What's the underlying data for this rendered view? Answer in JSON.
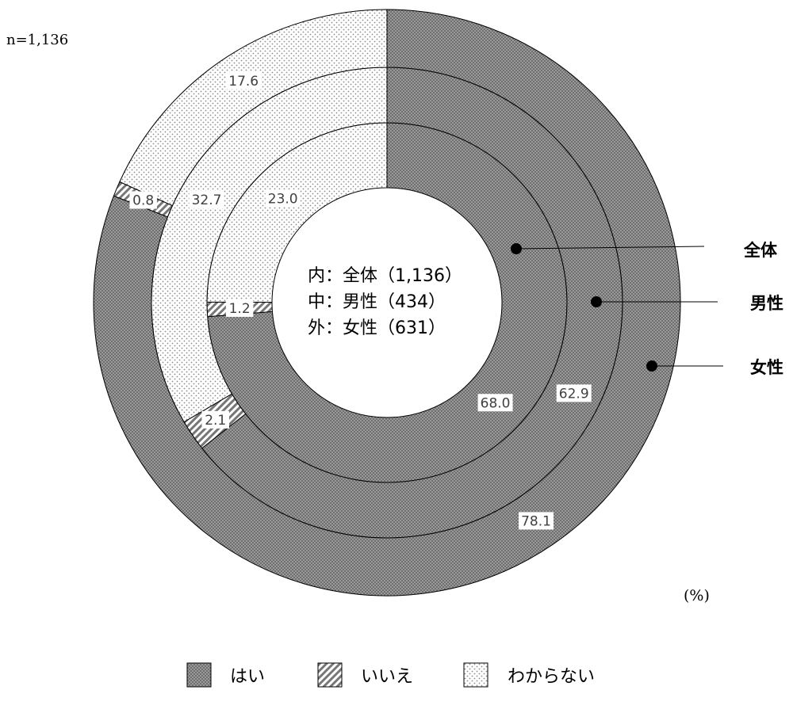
{
  "chart_data": {
    "type": "pie",
    "variant": "multi-ring donut",
    "sample_size": "n=1,136",
    "unit": "(%)",
    "center_labels": [
      "内：全体（1,136）",
      "中：男性（434）",
      "外：女性（631）"
    ],
    "categories": [
      "はい",
      "いいえ",
      "わからない"
    ],
    "colors": {
      "はい": "#808080",
      "いいえ": "#b0b0b0",
      "わからない": "#f0f0f0"
    },
    "series": [
      {
        "name": "全体",
        "values": [
          68.0,
          1.2,
          23.0
        ]
      },
      {
        "name": "男性",
        "values": [
          62.9,
          2.1,
          32.7
        ]
      },
      {
        "name": "女性",
        "values": [
          78.1,
          0.8,
          17.6
        ]
      }
    ],
    "legend": {
      "position": "bottom",
      "items": [
        "はい",
        "いいえ",
        "わからない"
      ]
    }
  }
}
